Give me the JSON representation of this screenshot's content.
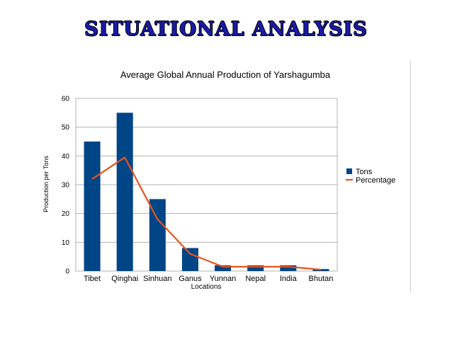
{
  "slide": {
    "title": "SITUATIONAL ANALYSIS"
  },
  "chart_data": {
    "type": "bar",
    "title": "Average Global Annual Production of Yarshagumba",
    "xlabel": "Locations",
    "ylabel": "Production per Tons",
    "ylim": [
      0,
      60
    ],
    "yticks": [
      0,
      10,
      20,
      30,
      40,
      50,
      60
    ],
    "grid": true,
    "legend_position": "right",
    "categories": [
      "Tibet",
      "Qinghai",
      "Sinhuan",
      "Ganus",
      "Yunnan",
      "Nepal",
      "India",
      "Bhutan"
    ],
    "series": [
      {
        "name": "Tons",
        "kind": "bar",
        "color": "#004586",
        "values": [
          45,
          55,
          25,
          8,
          2,
          2,
          2,
          0.7
        ]
      },
      {
        "name": "Percentage",
        "kind": "line",
        "color": "#e8541a",
        "values": [
          32,
          39.5,
          18,
          6,
          1.5,
          1.5,
          1.5,
          0.5
        ]
      }
    ]
  }
}
